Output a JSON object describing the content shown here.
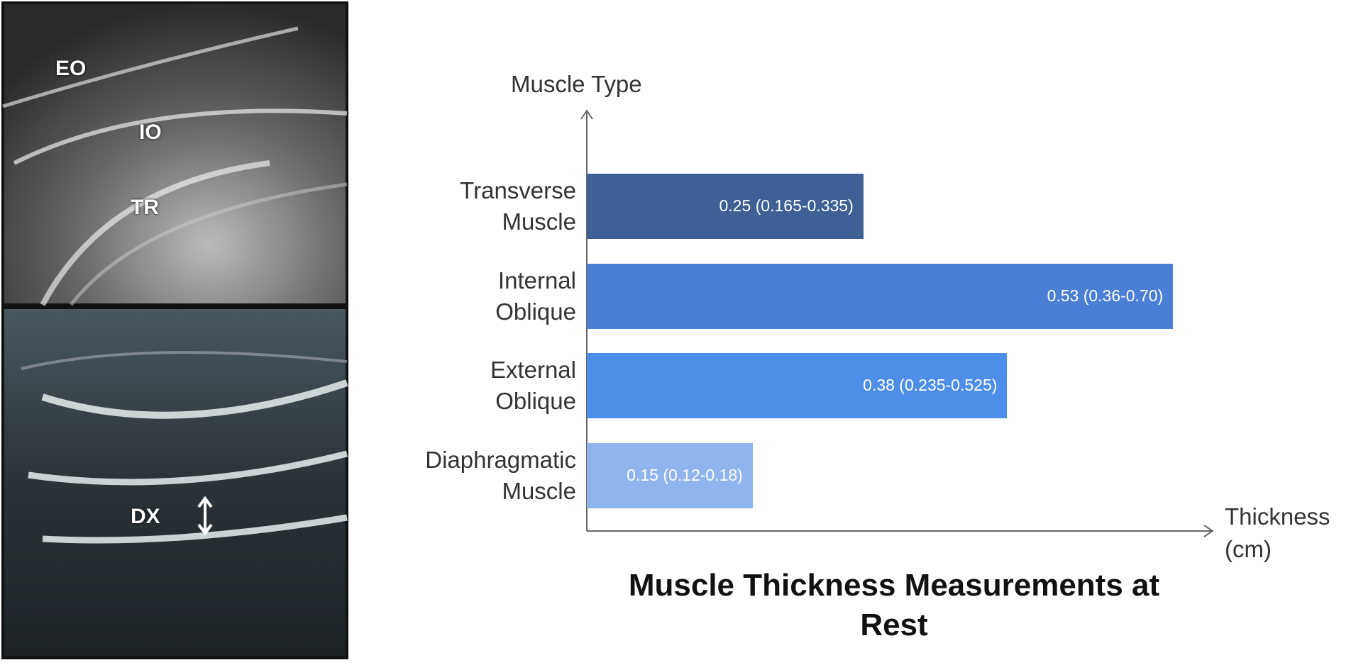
{
  "image_labels": {
    "top": [
      "EO",
      "IO",
      "TR"
    ],
    "bottom": [
      "DX"
    ]
  },
  "chart_data": {
    "type": "bar",
    "orientation": "horizontal",
    "title": "Muscle Thickness Measurements at Rest",
    "y_label": "Muscle Type",
    "x_label": "Thickness (cm)",
    "categories": [
      "Transverse Muscle",
      "Internal Oblique",
      "External Oblique",
      "Diaphragmatic Muscle"
    ],
    "values": [
      0.25,
      0.53,
      0.38,
      0.15
    ],
    "value_labels": [
      "0.25 (0.165-0.335)",
      "0.53 (0.36-0.70)",
      "0.38 (0.235-0.525)",
      "0.15 (0.12-0.18)"
    ],
    "colors": [
      "#3f5f97",
      "#4a7fd6",
      "#4d8ee8",
      "#8fb5ef"
    ],
    "xlim": [
      0,
      0.56
    ]
  }
}
